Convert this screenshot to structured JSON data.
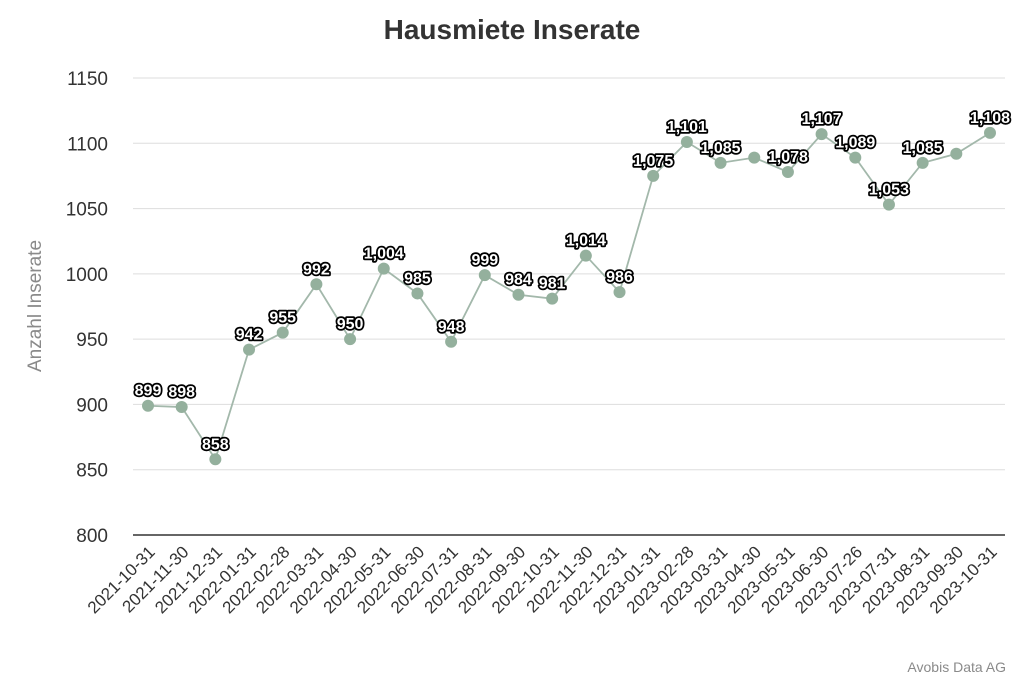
{
  "chart_data": {
    "type": "line",
    "title": "Hausmiete Inserate",
    "ylabel": "Anzahl Inserate",
    "xlabel": "",
    "ylim": [
      800,
      1150
    ],
    "yticks": [
      "800",
      "850",
      "900",
      "950",
      "1000",
      "1050",
      "1100",
      "1150"
    ],
    "grid": true,
    "line_color": "#a3b8ab",
    "point_color": "#94b09d",
    "categories": [
      "2021-10-31",
      "2021-11-30",
      "2021-12-31",
      "2022-01-31",
      "2022-02-28",
      "2022-03-31",
      "2022-04-30",
      "2022-05-31",
      "2022-06-30",
      "2022-07-31",
      "2022-08-31",
      "2022-09-30",
      "2022-10-31",
      "2022-11-30",
      "2022-12-31",
      "2023-01-31",
      "2023-02-28",
      "2023-03-31",
      "2023-04-30",
      "2023-05-31",
      "2023-06-30",
      "2023-07-26",
      "2023-07-31",
      "2023-08-31",
      "2023-09-30",
      "2023-10-31"
    ],
    "values": [
      899,
      898,
      858,
      942,
      955,
      992,
      950,
      1004,
      985,
      948,
      999,
      984,
      981,
      1014,
      986,
      1075,
      1101,
      1085,
      1089,
      1078,
      1107,
      1089,
      1053,
      1085,
      1092,
      1108
    ],
    "data_labels": [
      "899",
      "898",
      "858",
      "942",
      "955",
      "992",
      "950",
      "1,004",
      "985",
      "948",
      "999",
      "984",
      "981",
      "1,014",
      "986",
      "1,075",
      "1,101",
      "1,085",
      "",
      "1,078",
      "1,107",
      "1,089",
      "1,053",
      "1,085",
      "",
      "1,108"
    ]
  },
  "footer": {
    "credit": "Avobis Data AG"
  }
}
